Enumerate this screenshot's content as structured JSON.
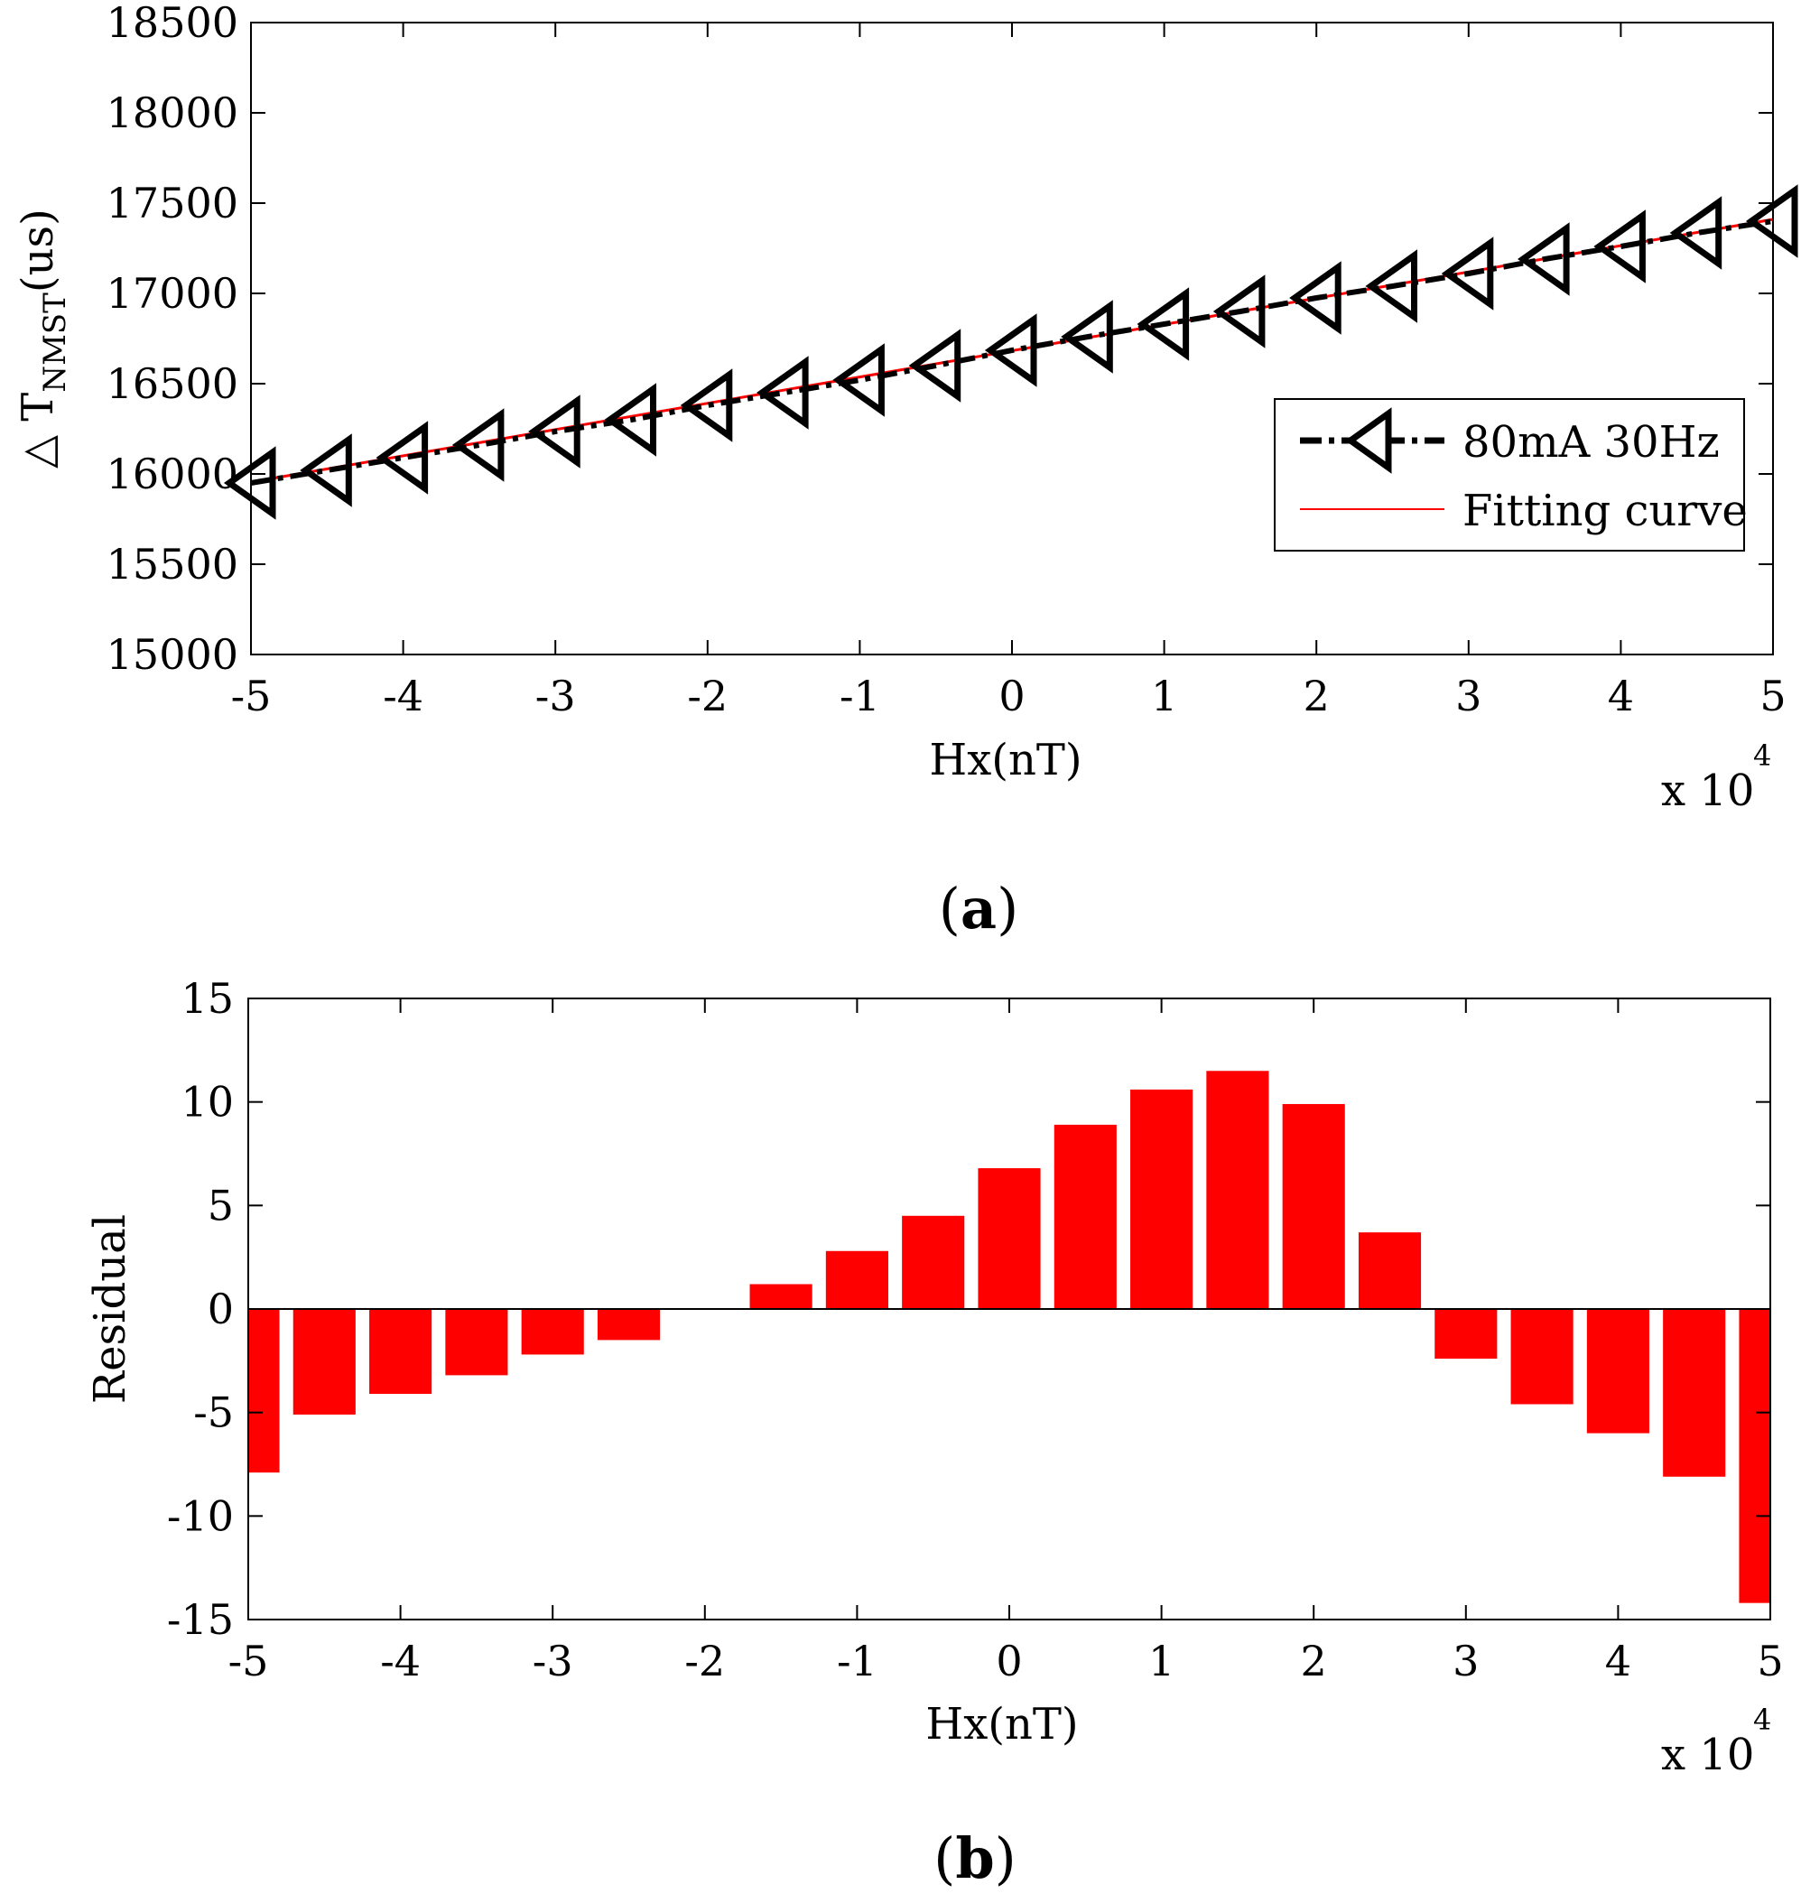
{
  "chart_data": [
    {
      "type": "line",
      "panel_label": "a",
      "xlabel": "Hx(nT)",
      "x_multiplier": "x 10",
      "x_multiplier_exp": "4",
      "ylabel_prefix": "△ T",
      "ylabel_sub": "NMST",
      "ylabel_suffix": "(us)",
      "xlim": [
        -5,
        5
      ],
      "ylim": [
        15000,
        18500
      ],
      "xticks": [
        -5,
        -4,
        -3,
        -2,
        -1,
        0,
        1,
        2,
        3,
        4,
        5
      ],
      "yticks": [
        15000,
        15500,
        16000,
        16500,
        17000,
        17500,
        18000,
        18500
      ],
      "legend_position": "right",
      "series": [
        {
          "name": "80mA 30Hz",
          "color": "#000000",
          "style": "dash-dot",
          "marker": "triangle-left",
          "x": [
            -5,
            -4.5,
            -4,
            -3.5,
            -3,
            -2.5,
            -2,
            -1.5,
            -1,
            -0.5,
            0,
            0.5,
            1,
            1.5,
            2,
            2.5,
            3,
            3.5,
            4,
            4.5,
            5
          ],
          "y": [
            15950,
            16020,
            16090,
            16160,
            16235,
            16300,
            16380,
            16450,
            16520,
            16600,
            16685,
            16760,
            16830,
            16900,
            16975,
            17040,
            17110,
            17190,
            17260,
            17335,
            17400
          ]
        },
        {
          "name": "Fitting curve",
          "color": "#ff0000",
          "style": "solid",
          "x": [
            -5,
            5
          ],
          "y": [
            15955,
            17410
          ]
        }
      ]
    },
    {
      "type": "bar",
      "panel_label": "b",
      "xlabel": "Hx(nT)",
      "x_multiplier": "x 10",
      "x_multiplier_exp": "4",
      "ylabel": "Residual",
      "xlim": [
        -5,
        5
      ],
      "ylim": [
        -15,
        15
      ],
      "xticks": [
        -5,
        -4,
        -3,
        -2,
        -1,
        0,
        1,
        2,
        3,
        4,
        5
      ],
      "yticks": [
        -15,
        -10,
        -5,
        0,
        5,
        10,
        15
      ],
      "bar_color": "#ff0000",
      "bar_width": 0.41,
      "x": [
        -5,
        -4.5,
        -4,
        -3.5,
        -3,
        -2.5,
        -2,
        -1.5,
        -1,
        -0.5,
        0,
        0.5,
        1,
        1.5,
        2,
        2.5,
        3,
        3.5,
        4,
        4.5,
        5
      ],
      "values": [
        -7.9,
        -5.1,
        -4.1,
        -3.2,
        -2.2,
        -1.5,
        0,
        1.2,
        2.8,
        4.5,
        6.8,
        8.9,
        10.6,
        11.5,
        9.9,
        3.7,
        -2.4,
        -4.6,
        -6,
        -8.1,
        -14.2
      ]
    }
  ]
}
